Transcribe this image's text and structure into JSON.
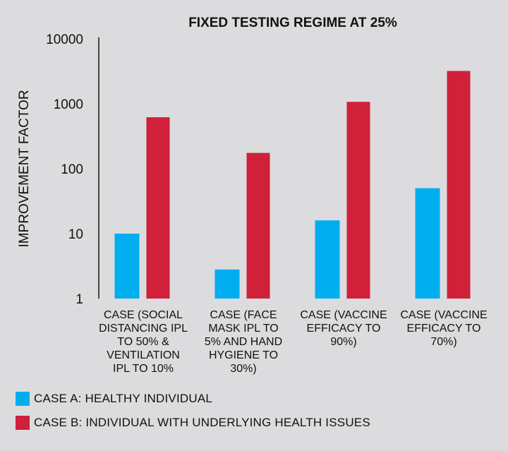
{
  "chart_data": {
    "type": "bar",
    "title": "FIXED TESTING REGIME AT 25%",
    "ylabel": "IMPROVEMENT FACTOR",
    "xlabel": "",
    "yscale": "log",
    "ylim": [
      1,
      10000
    ],
    "yticks": [
      1,
      10,
      100,
      1000,
      10000
    ],
    "ytick_labels": [
      "1",
      "10",
      "100",
      "1000",
      "10000"
    ],
    "grid": false,
    "legend_position": "bottom",
    "categories": [
      [
        "CASE (SOCIAL",
        "DISTANCING IPL",
        "TO 50% &",
        "VENTILATION",
        "IPL TO 10%"
      ],
      [
        "CASE (FACE",
        "MASK IPL TO",
        "5% AND HAND",
        "HYGIENE TO",
        "30%)"
      ],
      [
        "CASE (VACCINE",
        "EFFICACY TO",
        "90%)"
      ],
      [
        "CASE (VACCINE",
        "EFFICACY TO",
        "70%)"
      ]
    ],
    "series": [
      {
        "name": "CASE A: HEALTHY INDIVIDUAL",
        "color": "#00aeef",
        "values": [
          10,
          2.8,
          16,
          50
        ]
      },
      {
        "name": "CASE B: INDIVIDUAL WITH UNDERLYING HEALTH ISSUES",
        "color": "#d0203a",
        "values": [
          620,
          175,
          1070,
          3200
        ]
      }
    ]
  }
}
